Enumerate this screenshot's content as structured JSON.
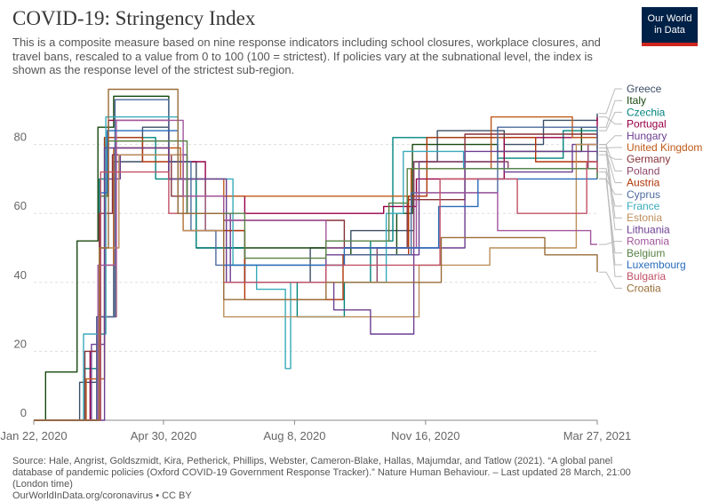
{
  "header": {
    "title": "COVID-19: Stringency Index",
    "subtitle": "This is a composite measure based on nine response indicators including school closures, workplace closures, and travel bans, rescaled to a value from 0 to 100 (100 = strictest). If policies vary at the subnational level, the index is shown as the response level of the strictest sub-region.",
    "logo_line1": "Our World",
    "logo_line2": "in Data"
  },
  "footer": {
    "source": "Source: Hale, Angrist, Goldszmidt, Kira, Petherick, Phillips, Webster, Cameron-Blake, Hallas, Majumdar, and Tatlow (2021). “A global panel database of pandemic policies (Oxford COVID-19 Government Response Tracker).” Nature Human Behaviour. – Last updated 28 March, 21:00 (London time)",
    "url": "OurWorldInData.org/coronavirus • CC BY"
  },
  "colors": {
    "logo_bg": "#002147",
    "logo_accent": "#ce261e",
    "grid": "#dddddd"
  },
  "chart_data": {
    "type": "line",
    "title": "COVID-19: Stringency Index",
    "xlim": [
      "2020-01-22",
      "2021-03-27"
    ],
    "ylim": [
      0,
      100
    ],
    "y_ticks": [
      0,
      20,
      40,
      60,
      80
    ],
    "x_ticks": [
      {
        "date": "2020-01-22",
        "label": "Jan 22, 2020"
      },
      {
        "date": "2020-04-30",
        "label": "Apr 30, 2020"
      },
      {
        "date": "2020-08-08",
        "label": "Aug 8, 2020"
      },
      {
        "date": "2020-11-16",
        "label": "Nov 16, 2020"
      },
      {
        "date": "2021-03-27",
        "label": "Mar 27, 2021"
      }
    ],
    "grid": "horizontal dashed",
    "legend_placement": "right",
    "series": [
      {
        "name": "Greece",
        "color": "#3c4e66",
        "points": [
          [
            "2020-01-22",
            0
          ],
          [
            "2020-02-26",
            11
          ],
          [
            "2020-03-10",
            30
          ],
          [
            "2020-03-23",
            75
          ],
          [
            "2020-04-14",
            85
          ],
          [
            "2020-05-04",
            75
          ],
          [
            "2020-05-25",
            50
          ],
          [
            "2020-07-01",
            40
          ],
          [
            "2020-08-20",
            50
          ],
          [
            "2020-09-20",
            55
          ],
          [
            "2020-11-07",
            75
          ],
          [
            "2020-11-25",
            84
          ],
          [
            "2021-01-15",
            80
          ],
          [
            "2021-02-14",
            87
          ],
          [
            "2021-03-27",
            89
          ]
        ]
      },
      {
        "name": "Italy",
        "color": "#18470f",
        "points": [
          [
            "2020-01-22",
            0
          ],
          [
            "2020-01-31",
            14
          ],
          [
            "2020-02-24",
            52
          ],
          [
            "2020-03-11",
            85
          ],
          [
            "2020-03-23",
            94
          ],
          [
            "2020-05-04",
            70
          ],
          [
            "2020-05-18",
            60
          ],
          [
            "2020-06-15",
            50
          ],
          [
            "2020-09-20",
            48
          ],
          [
            "2020-10-25",
            60
          ],
          [
            "2020-11-06",
            80
          ],
          [
            "2021-01-10",
            78
          ],
          [
            "2021-03-15",
            85
          ],
          [
            "2021-03-27",
            85
          ]
        ]
      },
      {
        "name": "Czechia",
        "color": "#00847e",
        "points": [
          [
            "2020-01-22",
            0
          ],
          [
            "2020-03-01",
            15
          ],
          [
            "2020-03-12",
            70
          ],
          [
            "2020-03-16",
            82
          ],
          [
            "2020-04-24",
            70
          ],
          [
            "2020-05-25",
            50
          ],
          [
            "2020-07-01",
            40
          ],
          [
            "2020-08-10",
            30
          ],
          [
            "2020-09-15",
            40
          ],
          [
            "2020-10-05",
            52
          ],
          [
            "2020-10-22",
            82
          ],
          [
            "2021-01-10",
            76
          ],
          [
            "2021-03-01",
            84
          ],
          [
            "2021-03-27",
            84
          ]
        ]
      },
      {
        "name": "Portugal",
        "color": "#970046",
        "points": [
          [
            "2020-01-22",
            0
          ],
          [
            "2020-03-05",
            20
          ],
          [
            "2020-03-13",
            65
          ],
          [
            "2020-03-19",
            87
          ],
          [
            "2020-05-04",
            75
          ],
          [
            "2020-06-01",
            65
          ],
          [
            "2020-07-01",
            60
          ],
          [
            "2020-09-15",
            60
          ],
          [
            "2020-10-15",
            62
          ],
          [
            "2020-11-09",
            70
          ],
          [
            "2021-01-15",
            82
          ],
          [
            "2021-03-27",
            88
          ]
        ]
      },
      {
        "name": "Hungary",
        "color": "#6d3e91",
        "points": [
          [
            "2020-01-22",
            0
          ],
          [
            "2020-03-06",
            22
          ],
          [
            "2020-03-16",
            70
          ],
          [
            "2020-03-28",
            77
          ],
          [
            "2020-05-18",
            60
          ],
          [
            "2020-06-20",
            40
          ],
          [
            "2020-09-01",
            48
          ],
          [
            "2020-11-11",
            75
          ],
          [
            "2021-01-15",
            72
          ],
          [
            "2021-03-08",
            80
          ],
          [
            "2021-03-27",
            80
          ]
        ]
      },
      {
        "name": "United Kingdom",
        "color": "#c05917",
        "points": [
          [
            "2020-01-22",
            0
          ],
          [
            "2020-03-02",
            12
          ],
          [
            "2020-03-16",
            45
          ],
          [
            "2020-03-23",
            79
          ],
          [
            "2020-05-13",
            70
          ],
          [
            "2020-06-15",
            65
          ],
          [
            "2020-08-08",
            65
          ],
          [
            "2020-09-22",
            65
          ],
          [
            "2020-11-05",
            73
          ],
          [
            "2021-01-05",
            88
          ],
          [
            "2021-03-08",
            82
          ],
          [
            "2021-03-27",
            79
          ]
        ]
      },
      {
        "name": "Germany",
        "color": "#883039",
        "points": [
          [
            "2020-01-22",
            0
          ],
          [
            "2020-03-01",
            20
          ],
          [
            "2020-03-12",
            60
          ],
          [
            "2020-03-22",
            77
          ],
          [
            "2020-05-06",
            65
          ],
          [
            "2020-06-15",
            58
          ],
          [
            "2020-09-15",
            50
          ],
          [
            "2020-11-02",
            64
          ],
          [
            "2020-12-16",
            83
          ],
          [
            "2021-03-27",
            77
          ]
        ]
      },
      {
        "name": "Poland",
        "color": "#8c4569",
        "points": [
          [
            "2020-01-22",
            0
          ],
          [
            "2020-03-10",
            30
          ],
          [
            "2020-03-25",
            81
          ],
          [
            "2020-05-04",
            70
          ],
          [
            "2020-06-01",
            55
          ],
          [
            "2020-07-01",
            40
          ],
          [
            "2020-10-10",
            50
          ],
          [
            "2020-11-07",
            75
          ],
          [
            "2021-01-18",
            73
          ],
          [
            "2021-03-20",
            80
          ],
          [
            "2021-03-27",
            80
          ]
        ]
      },
      {
        "name": "Austria",
        "color": "#b13507",
        "points": [
          [
            "2020-01-22",
            0
          ],
          [
            "2020-03-10",
            25
          ],
          [
            "2020-03-16",
            82
          ],
          [
            "2020-04-14",
            75
          ],
          [
            "2020-05-15",
            55
          ],
          [
            "2020-07-01",
            35
          ],
          [
            "2020-09-14",
            48
          ],
          [
            "2020-11-03",
            65
          ],
          [
            "2020-11-17",
            82
          ],
          [
            "2021-02-08",
            75
          ],
          [
            "2021-03-27",
            78
          ]
        ]
      },
      {
        "name": "Cyprus",
        "color": "#4c6a9c",
        "points": [
          [
            "2020-01-22",
            0
          ],
          [
            "2020-03-10",
            30
          ],
          [
            "2020-03-24",
            93
          ],
          [
            "2020-05-04",
            75
          ],
          [
            "2020-05-21",
            55
          ],
          [
            "2020-06-09",
            45
          ],
          [
            "2020-09-15",
            48
          ],
          [
            "2020-11-05",
            66
          ],
          [
            "2021-01-10",
            85
          ],
          [
            "2021-03-27",
            70
          ]
        ]
      },
      {
        "name": "France",
        "color": "#38aaba",
        "points": [
          [
            "2020-01-22",
            0
          ],
          [
            "2020-02-29",
            25
          ],
          [
            "2020-03-17",
            88
          ],
          [
            "2020-05-11",
            70
          ],
          [
            "2020-06-22",
            45
          ],
          [
            "2020-07-10",
            38
          ],
          [
            "2020-08-01",
            15
          ],
          [
            "2020-08-05",
            40
          ],
          [
            "2020-10-17",
            60
          ],
          [
            "2020-10-30",
            78
          ],
          [
            "2020-12-15",
            73
          ],
          [
            "2021-03-27",
            73
          ]
        ]
      },
      {
        "name": "Estonia",
        "color": "#bc8e5a",
        "points": [
          [
            "2020-01-22",
            0
          ],
          [
            "2020-03-12",
            50
          ],
          [
            "2020-03-27",
            77
          ],
          [
            "2020-05-15",
            55
          ],
          [
            "2020-06-15",
            30
          ],
          [
            "2020-09-15",
            30
          ],
          [
            "2020-11-11",
            45
          ],
          [
            "2021-01-04",
            50
          ],
          [
            "2021-03-11",
            80
          ],
          [
            "2021-03-27",
            80
          ]
        ]
      },
      {
        "name": "Lithuania",
        "color": "#6d3e91",
        "points": [
          [
            "2020-01-22",
            0
          ],
          [
            "2020-03-16",
            79
          ],
          [
            "2020-05-04",
            70
          ],
          [
            "2020-06-17",
            40
          ],
          [
            "2020-09-07",
            32
          ],
          [
            "2020-10-05",
            25
          ],
          [
            "2020-11-07",
            50
          ],
          [
            "2020-12-16",
            78
          ],
          [
            "2021-03-27",
            78
          ]
        ]
      },
      {
        "name": "Romania",
        "color": "#a2559c",
        "points": [
          [
            "2020-01-22",
            0
          ],
          [
            "2020-03-11",
            45
          ],
          [
            "2020-03-25",
            87
          ],
          [
            "2020-05-15",
            65
          ],
          [
            "2020-06-15",
            58
          ],
          [
            "2020-09-01",
            50
          ],
          [
            "2020-11-09",
            66
          ],
          [
            "2021-01-10",
            55
          ],
          [
            "2021-03-22",
            51
          ],
          [
            "2021-03-27",
            51
          ]
        ]
      },
      {
        "name": "Belgium",
        "color": "#578145",
        "points": [
          [
            "2020-01-22",
            0
          ],
          [
            "2020-03-13",
            65
          ],
          [
            "2020-03-18",
            81
          ],
          [
            "2020-05-18",
            60
          ],
          [
            "2020-07-01",
            47
          ],
          [
            "2020-09-01",
            52
          ],
          [
            "2020-10-19",
            63
          ],
          [
            "2020-11-02",
            73
          ],
          [
            "2021-03-27",
            70
          ]
        ]
      },
      {
        "name": "Luxembourg",
        "color": "#286bbb",
        "points": [
          [
            "2020-01-22",
            0
          ],
          [
            "2020-03-13",
            66
          ],
          [
            "2020-03-18",
            84
          ],
          [
            "2020-05-11",
            60
          ],
          [
            "2020-06-15",
            45
          ],
          [
            "2020-09-15",
            50
          ],
          [
            "2020-11-26",
            62
          ],
          [
            "2020-12-26",
            70
          ],
          [
            "2021-03-08",
            70
          ],
          [
            "2021-03-27",
            70
          ]
        ]
      },
      {
        "name": "Bulgaria",
        "color": "#c15065",
        "points": [
          [
            "2020-01-22",
            0
          ],
          [
            "2020-03-13",
            72
          ],
          [
            "2020-05-04",
            60
          ],
          [
            "2020-06-15",
            40
          ],
          [
            "2020-09-01",
            45
          ],
          [
            "2020-11-27",
            70
          ],
          [
            "2021-01-25",
            60
          ],
          [
            "2021-03-19",
            75
          ],
          [
            "2021-03-27",
            72
          ]
        ]
      },
      {
        "name": "Croatia",
        "color": "#996d39",
        "points": [
          [
            "2020-01-22",
            0
          ],
          [
            "2020-03-12",
            50
          ],
          [
            "2020-03-19",
            96
          ],
          [
            "2020-05-11",
            60
          ],
          [
            "2020-06-15",
            35
          ],
          [
            "2020-09-01",
            40
          ],
          [
            "2020-11-28",
            53
          ],
          [
            "2021-02-15",
            48
          ],
          [
            "2021-03-27",
            43
          ]
        ]
      }
    ]
  }
}
